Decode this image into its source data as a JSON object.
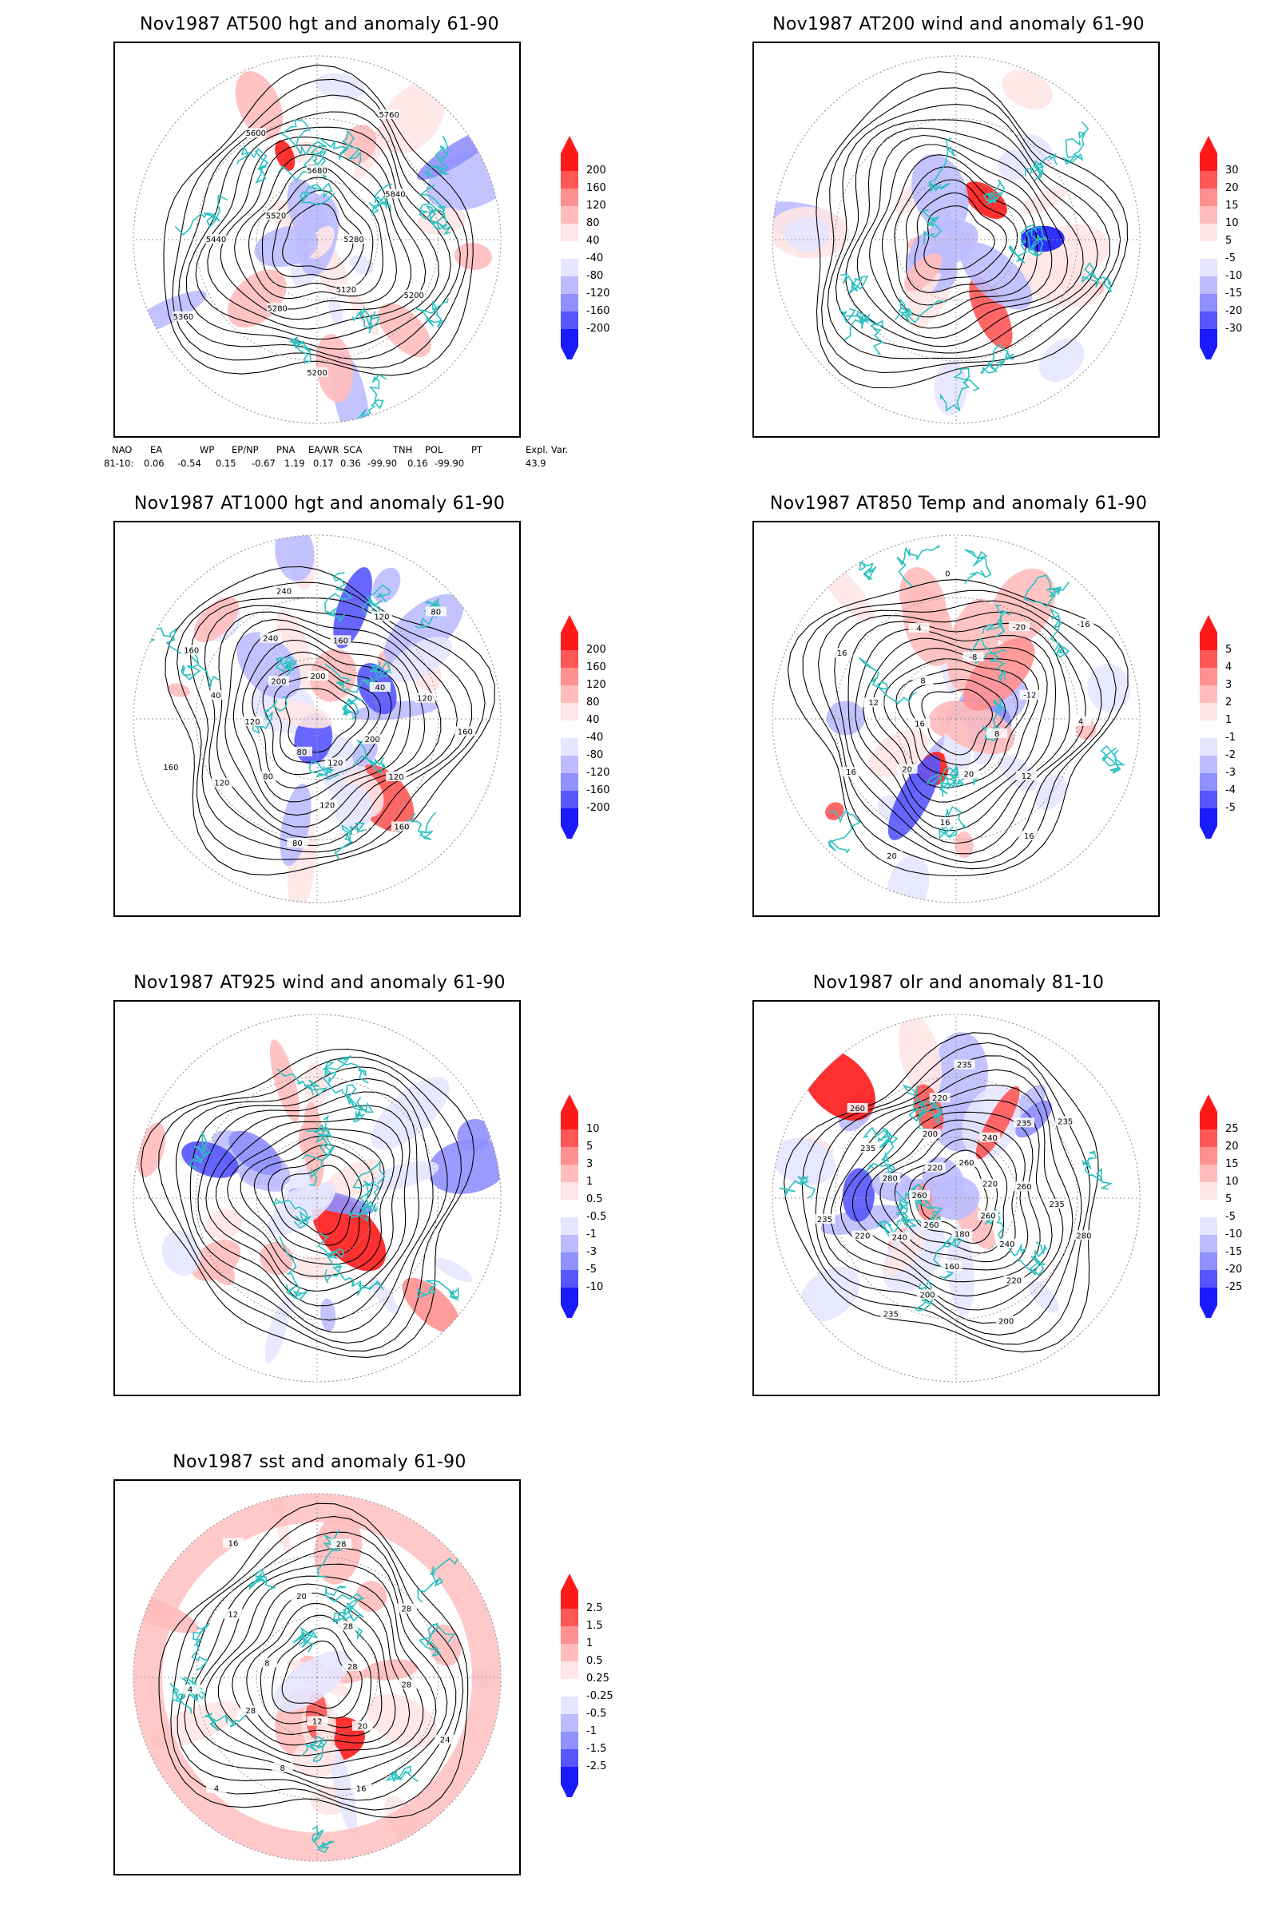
{
  "panels": [
    {
      "id": "at500",
      "title": "Nov1987 AT500 hgt and anomaly 61-90",
      "colorbar": [
        "200",
        "160",
        "120",
        "80",
        "40",
        "-40",
        "-80",
        "-120",
        "-160",
        "-200"
      ],
      "contour_labels": [
        "5280",
        "5200",
        "5120",
        "5200",
        "5280",
        "5360",
        "5440",
        "5520",
        "5600",
        "5680",
        "5760",
        "5840"
      ],
      "anomaly_variant": 0
    },
    {
      "id": "at200",
      "title": "Nov1987 AT200 wind and anomaly 61-90",
      "colorbar": [
        "30",
        "20",
        "15",
        "10",
        "5",
        "-5",
        "-10",
        "-15",
        "-20",
        "-30"
      ],
      "contour_labels": [],
      "anomaly_variant": 1
    },
    {
      "id": "at1000",
      "title": "Nov1987 AT1000 hgt and anomaly 61-90",
      "colorbar": [
        "200",
        "160",
        "120",
        "80",
        "40",
        "-40",
        "-80",
        "-120",
        "-160",
        "-200"
      ],
      "contour_labels": [
        "80",
        "80",
        "120",
        "160",
        "120",
        "40",
        "160",
        "200",
        "240",
        "240",
        "200",
        "160",
        "120",
        "80",
        "40",
        "120",
        "160",
        "200",
        "120",
        "160",
        "120",
        "120",
        "80"
      ],
      "anomaly_variant": 2
    },
    {
      "id": "at850",
      "title": "Nov1987 AT850 Temp and anomaly 61-90",
      "colorbar": [
        "5",
        "4",
        "3",
        "2",
        "1",
        "-1",
        "-2",
        "-3",
        "-4",
        "-5"
      ],
      "contour_labels": [
        "16",
        "12",
        "16",
        "8",
        "4",
        "0",
        "-8",
        "-20",
        "-16",
        "-12",
        "4",
        "8",
        "12",
        "16",
        "20",
        "16",
        "20",
        "20",
        "16"
      ],
      "anomaly_variant": 3
    },
    {
      "id": "at925",
      "title": "Nov1987 AT925 wind and anomaly 61-90",
      "colorbar": [
        "10",
        "5",
        "3",
        "1",
        "0.5",
        "-0.5",
        "-1",
        "-3",
        "-5",
        "-10"
      ],
      "contour_labels": [],
      "anomaly_variant": 4
    },
    {
      "id": "olr",
      "title": "Nov1987 olr and anomaly 81-10",
      "colorbar": [
        "25",
        "20",
        "15",
        "10",
        "5",
        "-5",
        "-10",
        "-15",
        "-20",
        "-25"
      ],
      "contour_labels": [
        "260",
        "240",
        "235",
        "235",
        "220",
        "260",
        "235",
        "280",
        "260",
        "240",
        "220",
        "200",
        "180",
        "160",
        "200",
        "235",
        "260",
        "240",
        "220",
        "235",
        "260",
        "280",
        "235",
        "260",
        "220",
        "200",
        "220",
        "235"
      ],
      "anomaly_variant": 5
    },
    {
      "id": "sst",
      "title": "Nov1987 sst and anomaly 61-90",
      "colorbar": [
        "2.5",
        "1.5",
        "1",
        "0.5",
        "0.25",
        "-0.25",
        "-0.5",
        "-1",
        "-1.5",
        "-2.5"
      ],
      "contour_labels": [
        "28",
        "28",
        "24",
        "20",
        "16",
        "12",
        "8",
        "4",
        "28",
        "4",
        "8",
        "12",
        "16",
        "20",
        "28",
        "28",
        "28"
      ],
      "anomaly_variant": 6
    }
  ],
  "teleconnection": {
    "headers": [
      "NAO",
      "EA",
      "WP",
      "EP/NP",
      "PNA",
      "EA/WR",
      "SCA",
      "TNH",
      "POL",
      "PT",
      "Expl. Var."
    ],
    "row_label": "81-10:",
    "values": [
      "0.06",
      "-0.54",
      "0.15",
      "-0.67",
      "1.19",
      "0.17",
      "0.36",
      "-99.90",
      "0.16",
      "-99.90",
      "43.9"
    ]
  },
  "colors": {
    "coastline": "#2cc1c1",
    "contour": "#000000",
    "grid": "#999999",
    "positive": [
      "#ffe6e6",
      "#ffbcbc",
      "#ff9090",
      "#ff5656",
      "#ff1a1a"
    ],
    "negative": [
      "#e6e6ff",
      "#bcbcff",
      "#9090ff",
      "#5656ff",
      "#1a1aff"
    ]
  }
}
